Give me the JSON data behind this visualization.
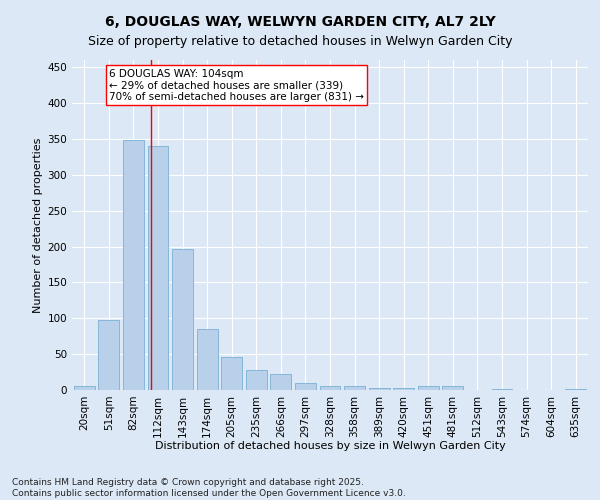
{
  "title": "6, DOUGLAS WAY, WELWYN GARDEN CITY, AL7 2LY",
  "subtitle": "Size of property relative to detached houses in Welwyn Garden City",
  "xlabel": "Distribution of detached houses by size in Welwyn Garden City",
  "ylabel": "Number of detached properties",
  "categories": [
    "20sqm",
    "51sqm",
    "82sqm",
    "112sqm",
    "143sqm",
    "174sqm",
    "205sqm",
    "235sqm",
    "266sqm",
    "297sqm",
    "328sqm",
    "358sqm",
    "389sqm",
    "420sqm",
    "451sqm",
    "481sqm",
    "512sqm",
    "543sqm",
    "574sqm",
    "604sqm",
    "635sqm"
  ],
  "values": [
    5,
    98,
    348,
    340,
    197,
    85,
    46,
    28,
    23,
    10,
    6,
    5,
    3,
    3,
    5,
    5,
    0,
    2,
    0,
    0,
    2
  ],
  "bar_color": "#b8d0ea",
  "bar_edge_color": "#7aafd4",
  "vline_x": 2.7,
  "vline_color": "red",
  "annotation_line1": "6 DOUGLAS WAY: 104sqm",
  "annotation_line2": "← 29% of detached houses are smaller (339)",
  "annotation_line3": "70% of semi-detached houses are larger (831) →",
  "annotation_box_color": "white",
  "annotation_box_edge_color": "red",
  "ylim": [
    0,
    460
  ],
  "yticks": [
    0,
    50,
    100,
    150,
    200,
    250,
    300,
    350,
    400,
    450
  ],
  "background_color": "#dce8f5",
  "grid_color": "white",
  "footnote": "Contains HM Land Registry data © Crown copyright and database right 2025.\nContains public sector information licensed under the Open Government Licence v3.0.",
  "title_fontsize": 10,
  "subtitle_fontsize": 9,
  "xlabel_fontsize": 8,
  "ylabel_fontsize": 8,
  "tick_fontsize": 7.5,
  "annotation_fontsize": 7.5,
  "footnote_fontsize": 6.5
}
